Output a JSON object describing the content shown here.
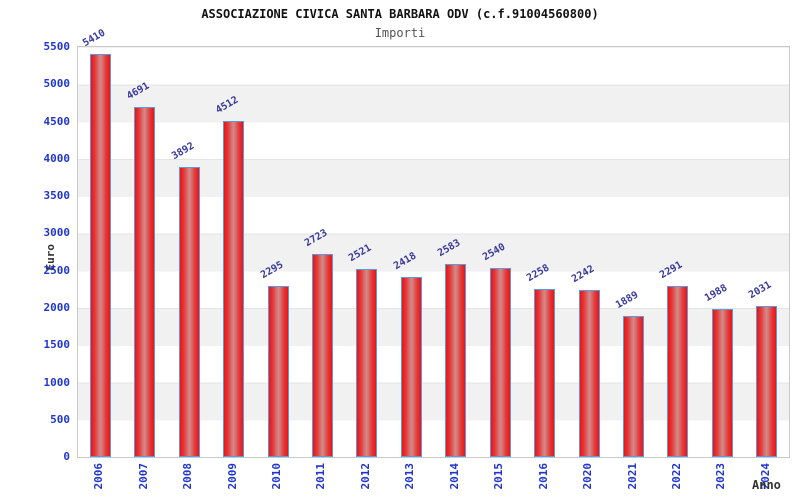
{
  "chart_data": {
    "type": "bar",
    "title": "ASSOCIAZIONE CIVICA SANTA BARBARA ODV (c.f.91004560800)",
    "subtitle": "Importi",
    "xlabel": "Anno",
    "ylabel": "Euro",
    "categories": [
      "2006",
      "2007",
      "2008",
      "2009",
      "2010",
      "2011",
      "2012",
      "2013",
      "2014",
      "2015",
      "2016",
      "2020",
      "2021",
      "2022",
      "2023",
      "2024"
    ],
    "values": [
      5410,
      4691,
      3892,
      4512,
      2295,
      2723,
      2521,
      2418,
      2583,
      2540,
      2258,
      2242,
      1889,
      2291,
      1988,
      2031
    ],
    "ylim": [
      0,
      5500
    ],
    "ytick_step": 500,
    "grid": "horizontal-bands-500",
    "legend": "none",
    "colors": {
      "bar_fill_edge": "#ee1212",
      "bar_fill_mid": "#d28c8c",
      "bar_border": "#5b9ae0",
      "axis_tick_label": "#2136cc",
      "value_label": "#39399b",
      "band_gray": "#f1f1f1",
      "band_white": "#ffffff",
      "plot_border": "#c9c9c9",
      "title": "#111111",
      "subtitle": "#555555",
      "axis_title": "#333333"
    }
  }
}
